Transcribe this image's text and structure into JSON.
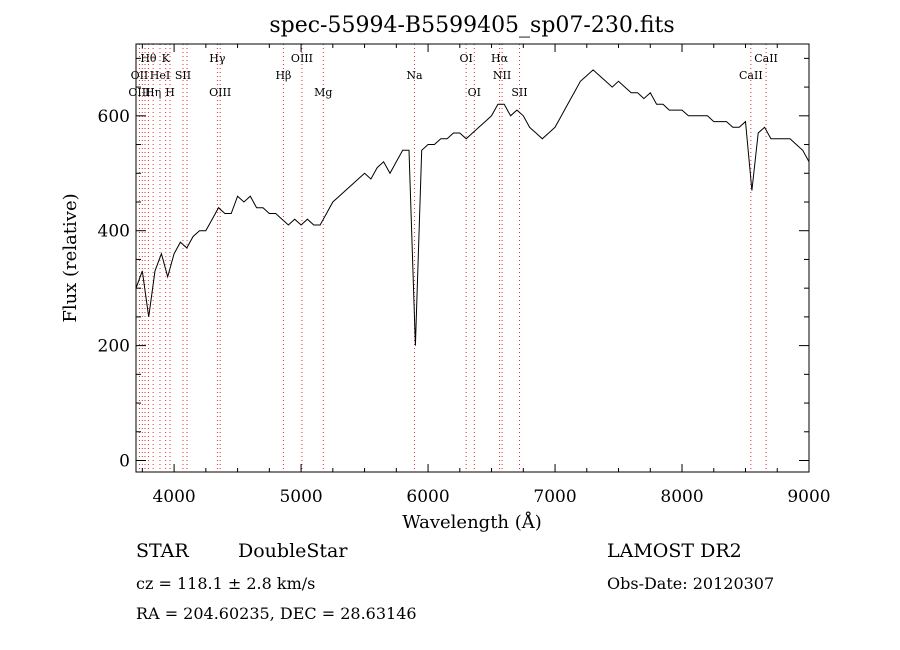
{
  "chart_data": {
    "type": "line",
    "title": "spec-55994-B5599405_sp07-230.fits",
    "xlabel": "Wavelength (Å)",
    "ylabel": "Flux (relative)",
    "xlim": [
      3700,
      9000
    ],
    "ylim": [
      -20,
      725
    ],
    "xticks": [
      4000,
      5000,
      6000,
      7000,
      8000,
      9000
    ],
    "yticks": [
      0,
      200,
      400,
      600
    ],
    "grid": false,
    "series": [
      {
        "values_x": [
          3700,
          3750,
          3800,
          3850,
          3900,
          3950,
          4000,
          4050,
          4100,
          4150,
          4200,
          4250,
          4300,
          4350,
          4400,
          4450,
          4500,
          4550,
          4600,
          4650,
          4700,
          4750,
          4800,
          4850,
          4900,
          4950,
          5000,
          5050,
          5100,
          5150,
          5200,
          5250,
          5300,
          5350,
          5400,
          5450,
          5500,
          5550,
          5600,
          5650,
          5700,
          5750,
          5800,
          5850,
          5900,
          5950,
          6000,
          6050,
          6100,
          6150,
          6200,
          6250,
          6300,
          6350,
          6400,
          6450,
          6500,
          6550,
          6600,
          6650,
          6700,
          6750,
          6800,
          6850,
          6900,
          6950,
          7000,
          7050,
          7100,
          7150,
          7200,
          7250,
          7300,
          7350,
          7400,
          7450,
          7500,
          7550,
          7600,
          7650,
          7700,
          7750,
          7800,
          7850,
          7900,
          7950,
          8000,
          8050,
          8100,
          8150,
          8200,
          8250,
          8300,
          8350,
          8400,
          8450,
          8500,
          8550,
          8600,
          8650,
          8700,
          8750,
          8800,
          8850,
          8900,
          8950,
          9000
        ],
        "values_y": [
          300,
          330,
          250,
          330,
          360,
          320,
          360,
          380,
          370,
          390,
          400,
          400,
          420,
          440,
          430,
          430,
          460,
          450,
          460,
          440,
          440,
          430,
          430,
          420,
          410,
          420,
          410,
          420,
          410,
          410,
          430,
          450,
          460,
          470,
          480,
          490,
          500,
          490,
          510,
          520,
          500,
          520,
          540,
          540,
          200,
          540,
          550,
          550,
          560,
          560,
          570,
          570,
          560,
          570,
          580,
          590,
          600,
          620,
          620,
          600,
          610,
          600,
          580,
          570,
          560,
          570,
          580,
          600,
          620,
          640,
          660,
          670,
          680,
          670,
          660,
          650,
          660,
          650,
          640,
          640,
          630,
          640,
          620,
          620,
          610,
          610,
          610,
          600,
          600,
          600,
          600,
          590,
          590,
          590,
          580,
          580,
          590,
          470,
          570,
          580,
          560,
          560,
          560,
          560,
          550,
          540,
          520
        ]
      }
    ],
    "line_labels": [
      {
        "text": "Hθ",
        "x": 3798,
        "row": 1
      },
      {
        "text": "K",
        "x": 3934,
        "row": 1
      },
      {
        "text": "Hγ",
        "x": 4341,
        "row": 1
      },
      {
        "text": "OIII",
        "x": 5007,
        "row": 1
      },
      {
        "text": "OI",
        "x": 6300,
        "row": 1
      },
      {
        "text": "Hα",
        "x": 6563,
        "row": 1
      },
      {
        "text": "CaII",
        "x": 8662,
        "row": 1
      },
      {
        "text": "OII",
        "x": 3727,
        "row": 2
      },
      {
        "text": "HeI",
        "x": 3889,
        "row": 2
      },
      {
        "text": "SII",
        "x": 4070,
        "row": 2
      },
      {
        "text": "Hβ",
        "x": 4861,
        "row": 2
      },
      {
        "text": "Na",
        "x": 5893,
        "row": 2
      },
      {
        "text": "NII",
        "x": 6583,
        "row": 2
      },
      {
        "text": "CaII",
        "x": 8542,
        "row": 2
      },
      {
        "text": "OIII",
        "x": 3727,
        "row": 3
      },
      {
        "text": "Hη",
        "x": 3835,
        "row": 3
      },
      {
        "text": "H",
        "x": 3968,
        "row": 3
      },
      {
        "text": "OIII",
        "x": 4363,
        "row": 3
      },
      {
        "text": "Mg",
        "x": 5175,
        "row": 3
      },
      {
        "text": "OI",
        "x": 6364,
        "row": 3
      },
      {
        "text": "SII",
        "x": 6720,
        "row": 3
      }
    ],
    "line_markers": [
      3727,
      3750,
      3771,
      3798,
      3835,
      3889,
      3934,
      3968,
      4070,
      4102,
      4341,
      4363,
      4861,
      5007,
      5175,
      5893,
      6300,
      6364,
      6563,
      6583,
      6720,
      8542,
      8662
    ]
  },
  "info": {
    "class": "STAR",
    "subclass": "DoubleStar",
    "survey": "LAMOST DR2",
    "cz": "cz = 118.1 ± 2.8 km/s",
    "obs_date": "Obs-Date: 20120307",
    "coords": "RA = 204.60235, DEC =  28.63146"
  }
}
